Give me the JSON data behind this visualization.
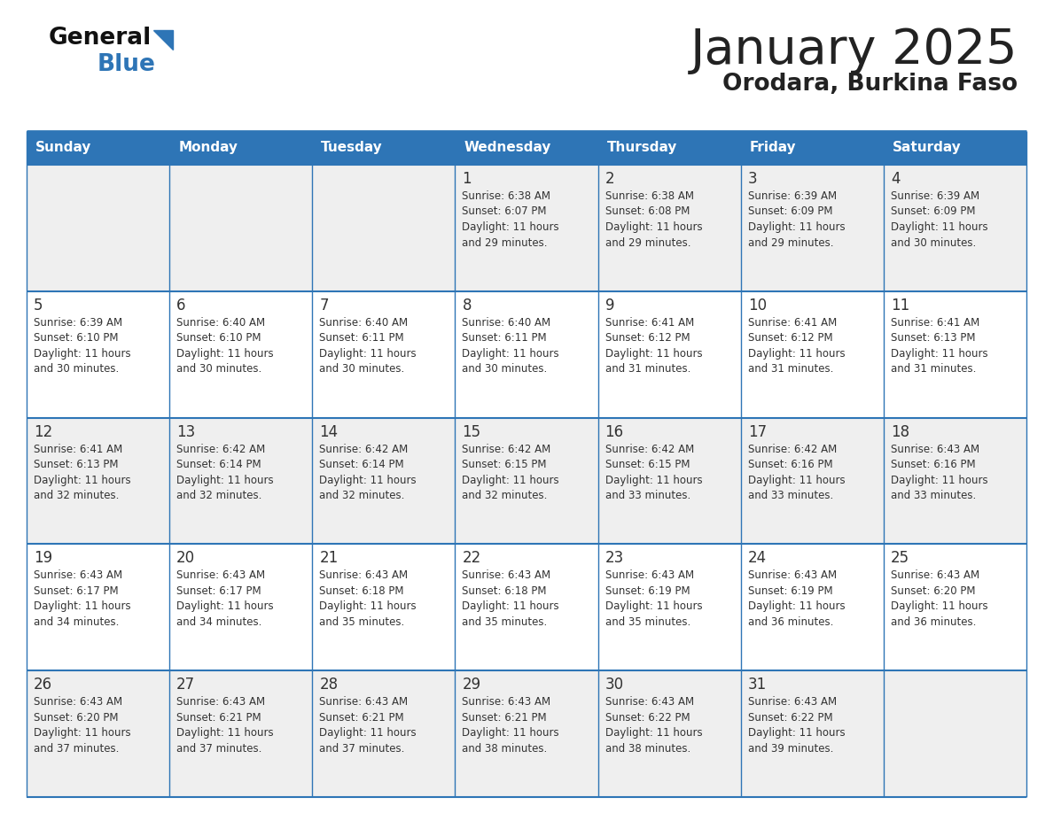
{
  "title": "January 2025",
  "subtitle": "Orodara, Burkina Faso",
  "header_bg": "#2E75B6",
  "header_text_color": "#FFFFFF",
  "day_names": [
    "Sunday",
    "Monday",
    "Tuesday",
    "Wednesday",
    "Thursday",
    "Friday",
    "Saturday"
  ],
  "cell_bg_odd": "#EFEFEF",
  "cell_bg_even": "#FFFFFF",
  "border_color": "#2E75B6",
  "text_color": "#333333",
  "title_color": "#222222",
  "logo_black": "#111111",
  "logo_blue": "#2E75B6",
  "calendar_data": [
    [
      {
        "day": null,
        "sunrise": null,
        "sunset": null,
        "daylight_line1": null,
        "daylight_line2": null
      },
      {
        "day": null,
        "sunrise": null,
        "sunset": null,
        "daylight_line1": null,
        "daylight_line2": null
      },
      {
        "day": null,
        "sunrise": null,
        "sunset": null,
        "daylight_line1": null,
        "daylight_line2": null
      },
      {
        "day": 1,
        "sunrise": "Sunrise: 6:38 AM",
        "sunset": "Sunset: 6:07 PM",
        "daylight_line1": "Daylight: 11 hours",
        "daylight_line2": "and 29 minutes."
      },
      {
        "day": 2,
        "sunrise": "Sunrise: 6:38 AM",
        "sunset": "Sunset: 6:08 PM",
        "daylight_line1": "Daylight: 11 hours",
        "daylight_line2": "and 29 minutes."
      },
      {
        "day": 3,
        "sunrise": "Sunrise: 6:39 AM",
        "sunset": "Sunset: 6:09 PM",
        "daylight_line1": "Daylight: 11 hours",
        "daylight_line2": "and 29 minutes."
      },
      {
        "day": 4,
        "sunrise": "Sunrise: 6:39 AM",
        "sunset": "Sunset: 6:09 PM",
        "daylight_line1": "Daylight: 11 hours",
        "daylight_line2": "and 30 minutes."
      }
    ],
    [
      {
        "day": 5,
        "sunrise": "Sunrise: 6:39 AM",
        "sunset": "Sunset: 6:10 PM",
        "daylight_line1": "Daylight: 11 hours",
        "daylight_line2": "and 30 minutes."
      },
      {
        "day": 6,
        "sunrise": "Sunrise: 6:40 AM",
        "sunset": "Sunset: 6:10 PM",
        "daylight_line1": "Daylight: 11 hours",
        "daylight_line2": "and 30 minutes."
      },
      {
        "day": 7,
        "sunrise": "Sunrise: 6:40 AM",
        "sunset": "Sunset: 6:11 PM",
        "daylight_line1": "Daylight: 11 hours",
        "daylight_line2": "and 30 minutes."
      },
      {
        "day": 8,
        "sunrise": "Sunrise: 6:40 AM",
        "sunset": "Sunset: 6:11 PM",
        "daylight_line1": "Daylight: 11 hours",
        "daylight_line2": "and 30 minutes."
      },
      {
        "day": 9,
        "sunrise": "Sunrise: 6:41 AM",
        "sunset": "Sunset: 6:12 PM",
        "daylight_line1": "Daylight: 11 hours",
        "daylight_line2": "and 31 minutes."
      },
      {
        "day": 10,
        "sunrise": "Sunrise: 6:41 AM",
        "sunset": "Sunset: 6:12 PM",
        "daylight_line1": "Daylight: 11 hours",
        "daylight_line2": "and 31 minutes."
      },
      {
        "day": 11,
        "sunrise": "Sunrise: 6:41 AM",
        "sunset": "Sunset: 6:13 PM",
        "daylight_line1": "Daylight: 11 hours",
        "daylight_line2": "and 31 minutes."
      }
    ],
    [
      {
        "day": 12,
        "sunrise": "Sunrise: 6:41 AM",
        "sunset": "Sunset: 6:13 PM",
        "daylight_line1": "Daylight: 11 hours",
        "daylight_line2": "and 32 minutes."
      },
      {
        "day": 13,
        "sunrise": "Sunrise: 6:42 AM",
        "sunset": "Sunset: 6:14 PM",
        "daylight_line1": "Daylight: 11 hours",
        "daylight_line2": "and 32 minutes."
      },
      {
        "day": 14,
        "sunrise": "Sunrise: 6:42 AM",
        "sunset": "Sunset: 6:14 PM",
        "daylight_line1": "Daylight: 11 hours",
        "daylight_line2": "and 32 minutes."
      },
      {
        "day": 15,
        "sunrise": "Sunrise: 6:42 AM",
        "sunset": "Sunset: 6:15 PM",
        "daylight_line1": "Daylight: 11 hours",
        "daylight_line2": "and 32 minutes."
      },
      {
        "day": 16,
        "sunrise": "Sunrise: 6:42 AM",
        "sunset": "Sunset: 6:15 PM",
        "daylight_line1": "Daylight: 11 hours",
        "daylight_line2": "and 33 minutes."
      },
      {
        "day": 17,
        "sunrise": "Sunrise: 6:42 AM",
        "sunset": "Sunset: 6:16 PM",
        "daylight_line1": "Daylight: 11 hours",
        "daylight_line2": "and 33 minutes."
      },
      {
        "day": 18,
        "sunrise": "Sunrise: 6:43 AM",
        "sunset": "Sunset: 6:16 PM",
        "daylight_line1": "Daylight: 11 hours",
        "daylight_line2": "and 33 minutes."
      }
    ],
    [
      {
        "day": 19,
        "sunrise": "Sunrise: 6:43 AM",
        "sunset": "Sunset: 6:17 PM",
        "daylight_line1": "Daylight: 11 hours",
        "daylight_line2": "and 34 minutes."
      },
      {
        "day": 20,
        "sunrise": "Sunrise: 6:43 AM",
        "sunset": "Sunset: 6:17 PM",
        "daylight_line1": "Daylight: 11 hours",
        "daylight_line2": "and 34 minutes."
      },
      {
        "day": 21,
        "sunrise": "Sunrise: 6:43 AM",
        "sunset": "Sunset: 6:18 PM",
        "daylight_line1": "Daylight: 11 hours",
        "daylight_line2": "and 35 minutes."
      },
      {
        "day": 22,
        "sunrise": "Sunrise: 6:43 AM",
        "sunset": "Sunset: 6:18 PM",
        "daylight_line1": "Daylight: 11 hours",
        "daylight_line2": "and 35 minutes."
      },
      {
        "day": 23,
        "sunrise": "Sunrise: 6:43 AM",
        "sunset": "Sunset: 6:19 PM",
        "daylight_line1": "Daylight: 11 hours",
        "daylight_line2": "and 35 minutes."
      },
      {
        "day": 24,
        "sunrise": "Sunrise: 6:43 AM",
        "sunset": "Sunset: 6:19 PM",
        "daylight_line1": "Daylight: 11 hours",
        "daylight_line2": "and 36 minutes."
      },
      {
        "day": 25,
        "sunrise": "Sunrise: 6:43 AM",
        "sunset": "Sunset: 6:20 PM",
        "daylight_line1": "Daylight: 11 hours",
        "daylight_line2": "and 36 minutes."
      }
    ],
    [
      {
        "day": 26,
        "sunrise": "Sunrise: 6:43 AM",
        "sunset": "Sunset: 6:20 PM",
        "daylight_line1": "Daylight: 11 hours",
        "daylight_line2": "and 37 minutes."
      },
      {
        "day": 27,
        "sunrise": "Sunrise: 6:43 AM",
        "sunset": "Sunset: 6:21 PM",
        "daylight_line1": "Daylight: 11 hours",
        "daylight_line2": "and 37 minutes."
      },
      {
        "day": 28,
        "sunrise": "Sunrise: 6:43 AM",
        "sunset": "Sunset: 6:21 PM",
        "daylight_line1": "Daylight: 11 hours",
        "daylight_line2": "and 37 minutes."
      },
      {
        "day": 29,
        "sunrise": "Sunrise: 6:43 AM",
        "sunset": "Sunset: 6:21 PM",
        "daylight_line1": "Daylight: 11 hours",
        "daylight_line2": "and 38 minutes."
      },
      {
        "day": 30,
        "sunrise": "Sunrise: 6:43 AM",
        "sunset": "Sunset: 6:22 PM",
        "daylight_line1": "Daylight: 11 hours",
        "daylight_line2": "and 38 minutes."
      },
      {
        "day": 31,
        "sunrise": "Sunrise: 6:43 AM",
        "sunset": "Sunset: 6:22 PM",
        "daylight_line1": "Daylight: 11 hours",
        "daylight_line2": "and 39 minutes."
      },
      {
        "day": null,
        "sunrise": null,
        "sunset": null,
        "daylight_line1": null,
        "daylight_line2": null
      }
    ]
  ]
}
